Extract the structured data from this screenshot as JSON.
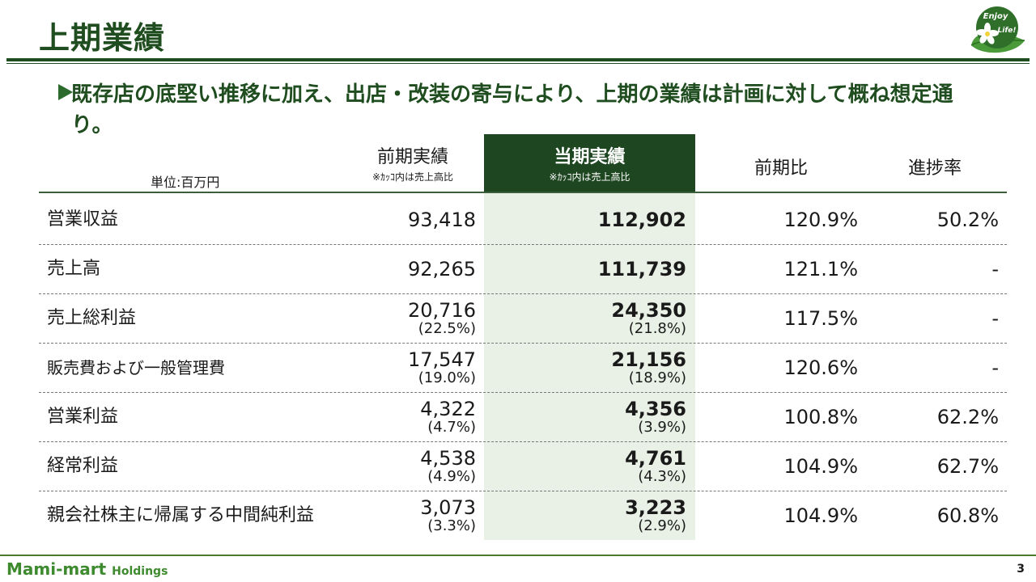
{
  "title": "上期業績",
  "logo": {
    "line1": "Enjoy",
    "line2": "Life!"
  },
  "lead": "既存店の底堅い推移に加え、出店・改装の寄与により、上期の業績は計画に対して概ね想定通り。",
  "table": {
    "unit": "単位:百万円",
    "headers": {
      "prev": "前期実績",
      "prev_note": "※ｶｯｺ内は売上高比",
      "cur": "当期実績",
      "cur_note": "※ｶｯｺ内は売上高比",
      "yoy": "前期比",
      "progress": "進捗率"
    },
    "rows": [
      {
        "label": "営業収益",
        "prev": "93,418",
        "prev_pct": "",
        "cur": "112,902",
        "cur_pct": "",
        "yoy": "120.9%",
        "progress": "50.2%"
      },
      {
        "label": "売上高",
        "prev": "92,265",
        "prev_pct": "",
        "cur": "111,739",
        "cur_pct": "",
        "yoy": "121.1%",
        "progress": "-"
      },
      {
        "label": "売上総利益",
        "prev": "20,716",
        "prev_pct": "(22.5%)",
        "cur": "24,350",
        "cur_pct": "(21.8%)",
        "yoy": "117.5%",
        "progress": "-"
      },
      {
        "label": "販売費および一般管理費",
        "prev": "17,547",
        "prev_pct": "(19.0%)",
        "cur": "21,156",
        "cur_pct": "(18.9%)",
        "yoy": "120.6%",
        "progress": "-"
      },
      {
        "label": "営業利益",
        "prev": "4,322",
        "prev_pct": "(4.7%)",
        "cur": "4,356",
        "cur_pct": "(3.9%)",
        "yoy": "100.8%",
        "progress": "62.2%"
      },
      {
        "label": "経常利益",
        "prev": "4,538",
        "prev_pct": "(4.9%)",
        "cur": "4,761",
        "cur_pct": "(4.3%)",
        "yoy": "104.9%",
        "progress": "62.7%"
      },
      {
        "label": "親会社株主に帰属する中間純利益",
        "prev": "3,073",
        "prev_pct": "(3.3%)",
        "cur": "3,223",
        "cur_pct": "(2.9%)",
        "yoy": "104.9%",
        "progress": "60.8%"
      }
    ]
  },
  "footer": {
    "brand_main": "Mami-mart",
    "brand_sub": "Holdings",
    "page": "3"
  },
  "colors": {
    "accent": "#1e4620",
    "highlight": "#e9f1e6",
    "brand": "#3e8a2e"
  }
}
